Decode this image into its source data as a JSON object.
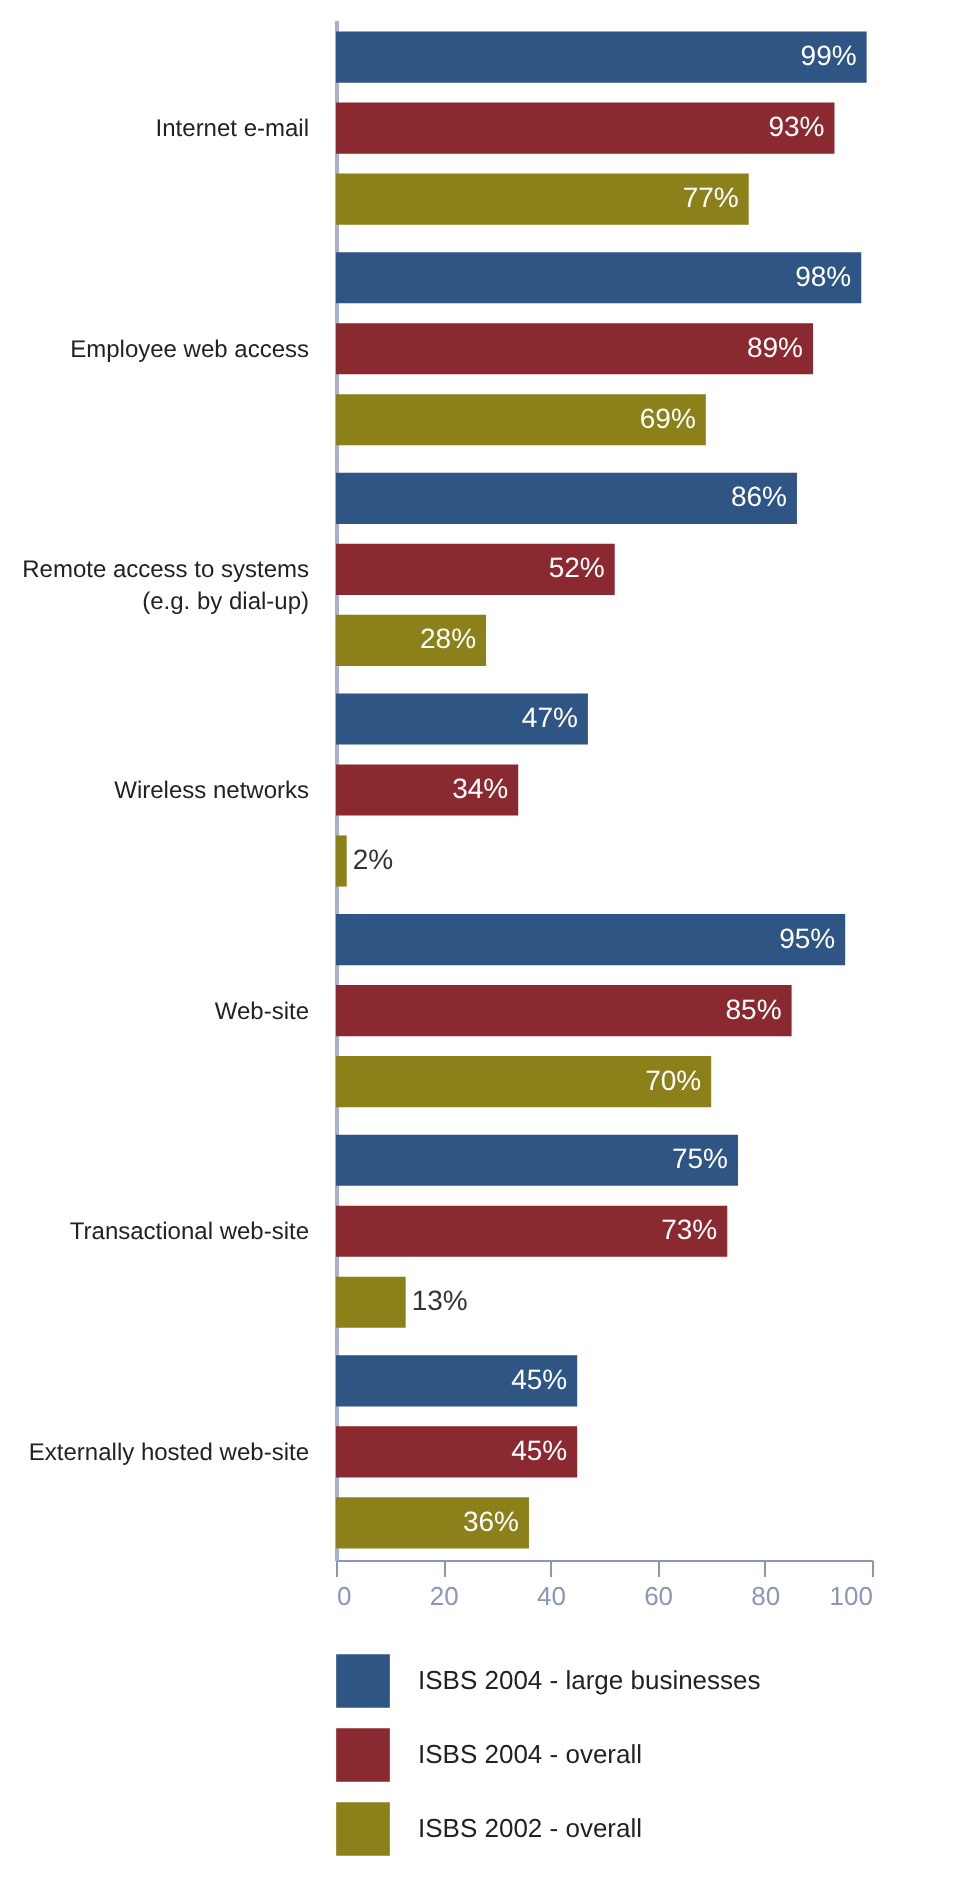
{
  "chart_data": {
    "type": "bar",
    "orientation": "horizontal",
    "categories": [
      "Internet e-mail",
      "Employee web access",
      "Remote access to systems\n(e.g. by dial-up)",
      "Wireless networks",
      "Web-site",
      "Transactional web-site",
      "Externally hosted web-site"
    ],
    "series": [
      {
        "name": "ISBS 2004 - large businesses",
        "color": "#2f5585",
        "values": [
          99,
          98,
          86,
          47,
          95,
          75,
          45
        ],
        "value_labels": [
          "99%",
          "98%",
          "86%",
          "47%",
          "95%",
          "75%",
          "45%"
        ]
      },
      {
        "name": "ISBS 2004 - overall",
        "color": "#8a2a30",
        "values": [
          93,
          89,
          52,
          34,
          85,
          73,
          45
        ],
        "value_labels": [
          "93%",
          "89%",
          "52%",
          "34%",
          "85%",
          "73%",
          "45%"
        ]
      },
      {
        "name": "ISBS 2002 - overall",
        "color": "#8b8019",
        "values": [
          77,
          69,
          28,
          2,
          70,
          13,
          36
        ],
        "value_labels": [
          "77%",
          "69%",
          "28%",
          "2%",
          "70%",
          "13%",
          "36%"
        ]
      }
    ],
    "xlim": [
      0,
      100
    ],
    "xticks": [
      0,
      20,
      40,
      60,
      80,
      100
    ],
    "legend": "bottom left"
  }
}
